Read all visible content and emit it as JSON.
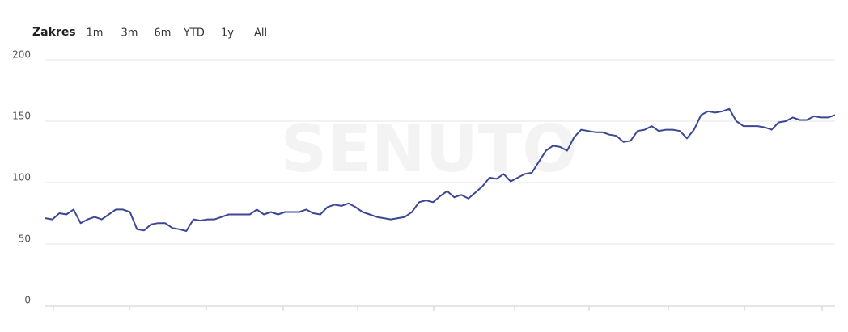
{
  "range_selector": {
    "label": "Zakres",
    "buttons": [
      "1m",
      "3m",
      "6m",
      "YTD",
      "1y",
      "All"
    ]
  },
  "chart_data": {
    "type": "line",
    "watermark": "SENUTO",
    "series": [
      {
        "color": "#3b4794",
        "values": [
          71,
          70,
          75,
          74,
          78,
          67,
          70,
          72,
          70,
          74,
          78,
          78,
          76,
          62,
          61,
          66,
          67,
          67,
          63,
          62,
          60.5,
          70,
          69,
          70,
          70,
          72,
          74,
          74,
          74,
          74,
          78,
          74,
          76,
          74,
          76,
          76,
          76,
          78,
          75,
          74,
          80,
          82,
          81,
          83,
          80,
          76,
          74,
          72,
          71,
          70,
          71,
          72,
          76,
          84,
          85.5,
          84,
          89,
          93,
          88,
          90,
          87,
          92,
          97,
          104,
          103,
          107,
          101,
          104,
          107,
          108,
          117,
          126,
          130,
          129,
          126,
          137,
          143,
          142,
          141,
          141,
          139,
          138,
          133,
          134,
          142,
          143,
          146,
          142,
          143,
          143,
          142,
          136,
          143,
          155,
          158,
          157,
          158,
          160,
          150,
          146,
          146,
          146,
          145,
          143,
          149,
          150,
          153,
          151,
          151,
          154,
          153,
          153,
          155
        ]
      }
    ],
    "ylim": [
      0,
      200
    ],
    "yticks": [
      0,
      50,
      100,
      150,
      200
    ],
    "grid": true
  }
}
